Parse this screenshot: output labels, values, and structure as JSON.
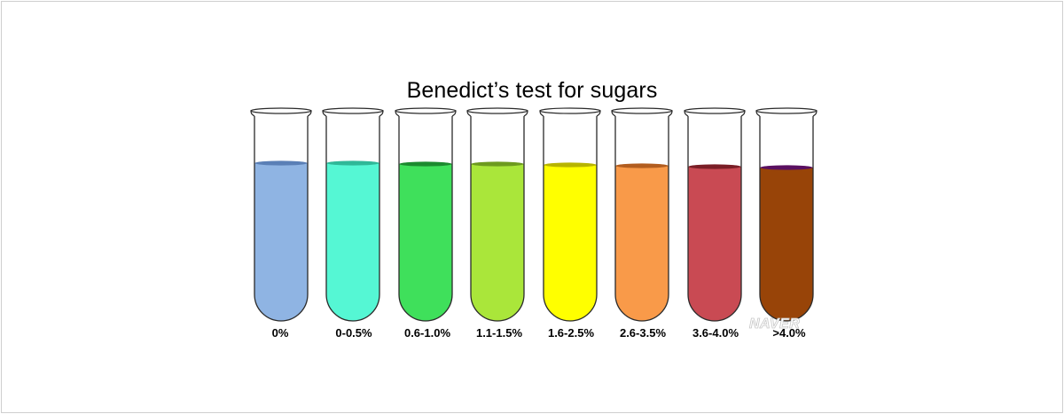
{
  "title": "Benedict’s test for sugars",
  "watermark": "NAVER",
  "tubes": [
    {
      "label": "0%",
      "color": "#8fb4e3",
      "meniscus": "#5a7fb6"
    },
    {
      "label": "0-0.5%",
      "color": "#55f7d4",
      "meniscus": "#2fb898"
    },
    {
      "label": "0.6-1.0%",
      "color": "#3fe05b",
      "meniscus": "#1c8a2f"
    },
    {
      "label": "1.1-1.5%",
      "color": "#aae63a",
      "meniscus": "#6d9a1f"
    },
    {
      "label": "1.6-2.5%",
      "color": "#ffff00",
      "meniscus": "#b7b400"
    },
    {
      "label": "2.6-3.5%",
      "color": "#f99a49",
      "meniscus": "#b25d1f"
    },
    {
      "label": "3.6-4.0%",
      "color": "#c94a53",
      "meniscus": "#7a1e26"
    },
    {
      "label": ">4.0%",
      "color": "#984408",
      "meniscus": "#5a1060"
    }
  ]
}
